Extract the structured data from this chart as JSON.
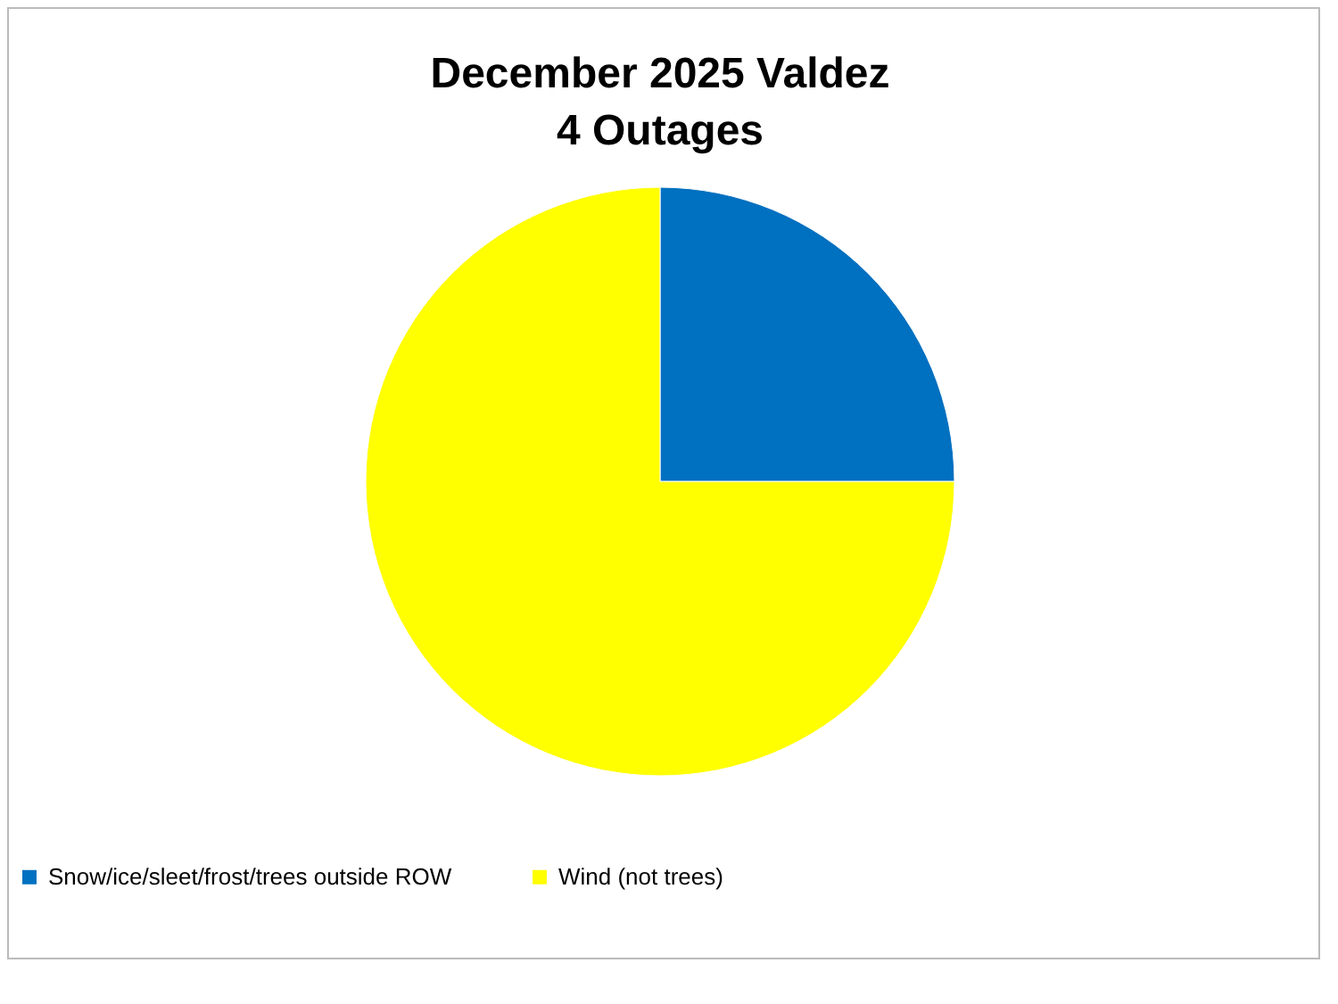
{
  "chart_data": {
    "type": "pie",
    "title": "December 2025 Valdez\n4 Outages",
    "categories": [
      "Snow/ice/sleet/frost/trees outside ROW",
      "Wind (not trees)"
    ],
    "values": [
      25,
      75
    ],
    "colors": [
      "#0070c0",
      "#ffff00"
    ],
    "legend": "bottom"
  }
}
